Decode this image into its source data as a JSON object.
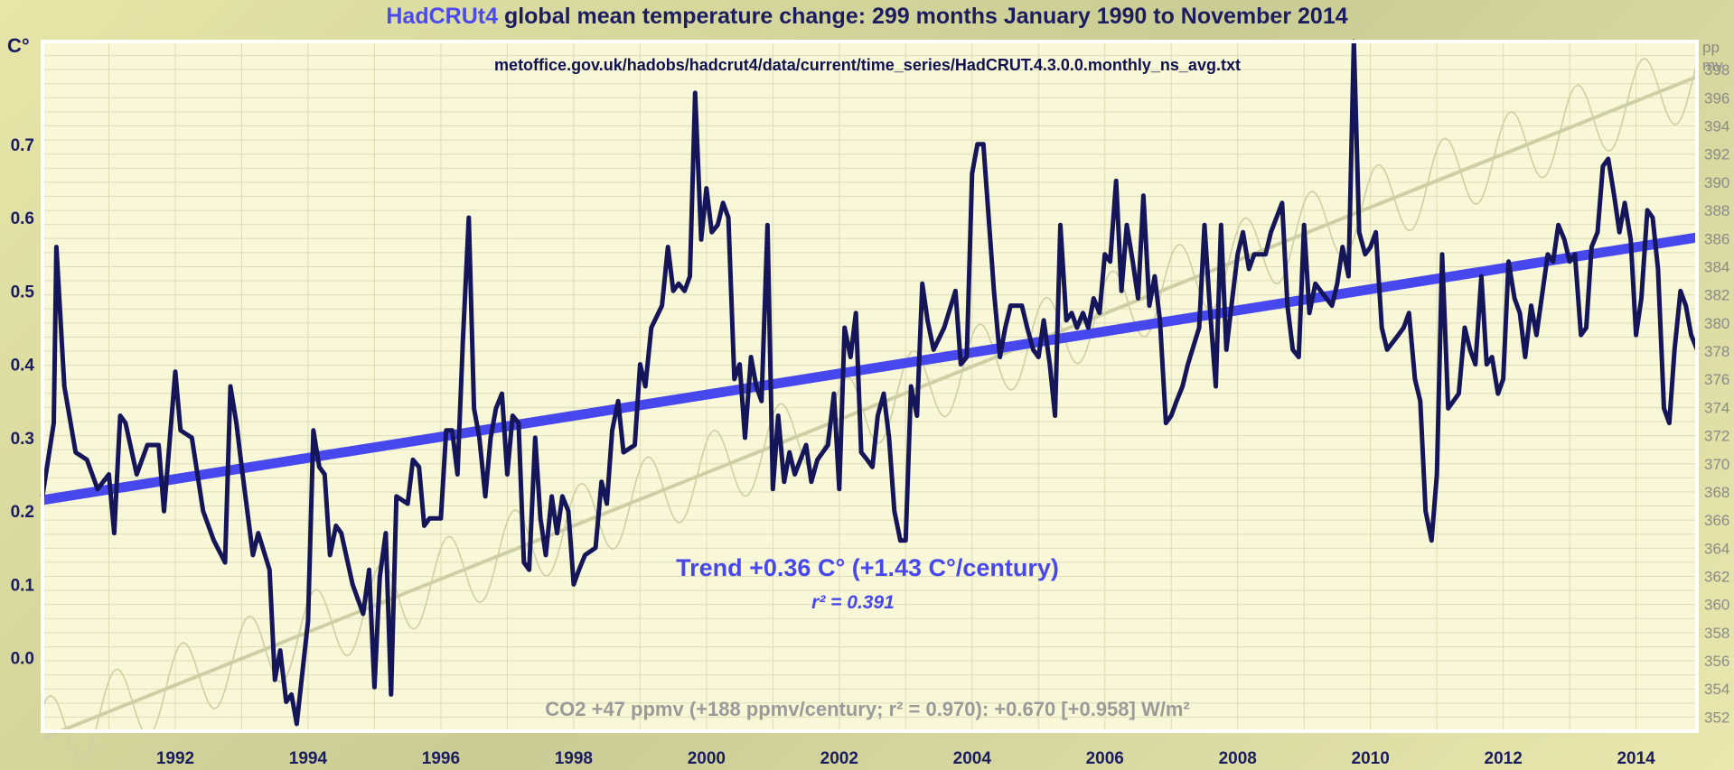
{
  "title_highlight": "HadCRUt4",
  "title_rest": " global mean temperature change: 299 months January 1990 to November 2014",
  "source_url": "metoffice.gov.uk/hadobs/hadcrut4/data/current/time_series/HadCRUT.4.3.0.0.monthly_ns_avg.txt",
  "left_unit": "C°",
  "right_unit_line1": "pp",
  "right_unit_line2": "mv",
  "trend_label": "Trend +0.36 C° (+1.43 C°/century)",
  "r2_label": "r² = 0.391",
  "co2_label": "CO2 +47 ppmv (+188 ppmv/century; r² = 0.970): +0.670 [+0.958] W/m²",
  "colors": {
    "temperature": "#15155a",
    "trend": "#4747ee",
    "co2": "#cfcfa6",
    "grid": "#dcdcb6",
    "plot_bg": "#f8f8d8"
  },
  "chart_data": {
    "type": "line",
    "x_range": [
      1990.0,
      2014.917
    ],
    "xticks": [
      "1992",
      "1994",
      "1996",
      "1998",
      "2000",
      "2002",
      "2004",
      "2006",
      "2008",
      "2010",
      "2012",
      "2014"
    ],
    "ylim": [
      -0.1,
      0.84
    ],
    "yticks": [
      "0.0",
      "0.1",
      "0.2",
      "0.3",
      "0.4",
      "0.5",
      "0.6",
      "0.7"
    ],
    "ylim_right": [
      351,
      400
    ],
    "yticks_right": [
      "352",
      "354",
      "356",
      "358",
      "360",
      "362",
      "364",
      "366",
      "368",
      "370",
      "372",
      "374",
      "376",
      "378",
      "380",
      "382",
      "384",
      "386",
      "388",
      "390",
      "392",
      "394",
      "396",
      "398"
    ],
    "grid": true,
    "series": [
      {
        "name": "HadCRUt4",
        "axis": "left",
        "points": [
          [
            1990.0,
            0.22
          ],
          [
            1990.17,
            0.32
          ],
          [
            1990.21,
            0.56
          ],
          [
            1990.33,
            0.37
          ],
          [
            1990.5,
            0.28
          ],
          [
            1990.67,
            0.27
          ],
          [
            1990.83,
            0.23
          ],
          [
            1991.0,
            0.25
          ],
          [
            1991.08,
            0.17
          ],
          [
            1991.17,
            0.33
          ],
          [
            1991.25,
            0.32
          ],
          [
            1991.42,
            0.25
          ],
          [
            1991.58,
            0.29
          ],
          [
            1991.75,
            0.29
          ],
          [
            1991.83,
            0.2
          ],
          [
            1992.0,
            0.39
          ],
          [
            1992.08,
            0.31
          ],
          [
            1992.25,
            0.3
          ],
          [
            1992.42,
            0.2
          ],
          [
            1992.58,
            0.16
          ],
          [
            1992.75,
            0.13
          ],
          [
            1992.83,
            0.37
          ],
          [
            1992.92,
            0.32
          ],
          [
            1993.0,
            0.26
          ],
          [
            1993.17,
            0.14
          ],
          [
            1993.25,
            0.17
          ],
          [
            1993.42,
            0.12
          ],
          [
            1993.5,
            -0.03
          ],
          [
            1993.58,
            0.01
          ],
          [
            1993.67,
            -0.06
          ],
          [
            1993.75,
            -0.05
          ],
          [
            1993.83,
            -0.09
          ],
          [
            1994.0,
            0.05
          ],
          [
            1994.08,
            0.31
          ],
          [
            1994.17,
            0.26
          ],
          [
            1994.25,
            0.25
          ],
          [
            1994.33,
            0.14
          ],
          [
            1994.42,
            0.18
          ],
          [
            1994.5,
            0.17
          ],
          [
            1994.67,
            0.1
          ],
          [
            1994.83,
            0.06
          ],
          [
            1994.92,
            0.12
          ],
          [
            1995.0,
            -0.04
          ],
          [
            1995.08,
            0.11
          ],
          [
            1995.17,
            0.17
          ],
          [
            1995.25,
            -0.05
          ],
          [
            1995.33,
            0.22
          ],
          [
            1995.5,
            0.21
          ],
          [
            1995.58,
            0.27
          ],
          [
            1995.67,
            0.26
          ],
          [
            1995.75,
            0.18
          ],
          [
            1995.83,
            0.19
          ],
          [
            1996.0,
            0.19
          ],
          [
            1996.08,
            0.31
          ],
          [
            1996.17,
            0.31
          ],
          [
            1996.25,
            0.25
          ],
          [
            1996.33,
            0.43
          ],
          [
            1996.42,
            0.6
          ],
          [
            1996.5,
            0.34
          ],
          [
            1996.58,
            0.3
          ],
          [
            1996.67,
            0.22
          ],
          [
            1996.75,
            0.3
          ],
          [
            1996.83,
            0.34
          ],
          [
            1996.92,
            0.36
          ],
          [
            1997.0,
            0.25
          ],
          [
            1997.08,
            0.33
          ],
          [
            1997.17,
            0.32
          ],
          [
            1997.25,
            0.13
          ],
          [
            1997.33,
            0.12
          ],
          [
            1997.42,
            0.3
          ],
          [
            1997.5,
            0.19
          ],
          [
            1997.58,
            0.14
          ],
          [
            1997.67,
            0.22
          ],
          [
            1997.75,
            0.17
          ],
          [
            1997.83,
            0.22
          ],
          [
            1997.92,
            0.2
          ],
          [
            1998.0,
            0.1
          ],
          [
            1998.08,
            0.12
          ],
          [
            1998.17,
            0.14
          ],
          [
            1998.33,
            0.15
          ],
          [
            1998.42,
            0.24
          ],
          [
            1998.5,
            0.21
          ],
          [
            1998.58,
            0.31
          ],
          [
            1998.67,
            0.35
          ],
          [
            1998.75,
            0.28
          ],
          [
            1998.92,
            0.29
          ],
          [
            1999.0,
            0.4
          ],
          [
            1999.08,
            0.37
          ],
          [
            1999.17,
            0.45
          ],
          [
            1999.33,
            0.48
          ],
          [
            1999.42,
            0.56
          ],
          [
            1999.5,
            0.5
          ],
          [
            1999.58,
            0.51
          ],
          [
            1999.67,
            0.5
          ],
          [
            1999.75,
            0.52
          ],
          [
            1999.83,
            0.77
          ],
          [
            1999.92,
            0.57
          ],
          [
            2000.0,
            0.64
          ],
          [
            2000.08,
            0.58
          ],
          [
            2000.17,
            0.59
          ],
          [
            2000.25,
            0.62
          ],
          [
            2000.33,
            0.6
          ],
          [
            2000.42,
            0.38
          ],
          [
            2000.5,
            0.4
          ],
          [
            2000.58,
            0.3
          ],
          [
            2000.67,
            0.41
          ],
          [
            2000.75,
            0.37
          ],
          [
            2000.83,
            0.35
          ],
          [
            2000.92,
            0.59
          ],
          [
            2001.0,
            0.23
          ],
          [
            2001.08,
            0.33
          ],
          [
            2001.17,
            0.24
          ],
          [
            2001.25,
            0.28
          ],
          [
            2001.33,
            0.25
          ],
          [
            2001.5,
            0.29
          ],
          [
            2001.58,
            0.24
          ],
          [
            2001.67,
            0.27
          ],
          [
            2001.83,
            0.29
          ],
          [
            2001.92,
            0.36
          ],
          [
            2002.0,
            0.23
          ],
          [
            2002.08,
            0.45
          ],
          [
            2002.17,
            0.41
          ],
          [
            2002.25,
            0.47
          ],
          [
            2002.33,
            0.28
          ],
          [
            2002.42,
            0.27
          ],
          [
            2002.5,
            0.26
          ],
          [
            2002.58,
            0.33
          ],
          [
            2002.67,
            0.36
          ],
          [
            2002.75,
            0.3
          ],
          [
            2002.83,
            0.2
          ],
          [
            2002.92,
            0.16
          ],
          [
            2003.0,
            0.16
          ],
          [
            2003.08,
            0.37
          ],
          [
            2003.17,
            0.33
          ],
          [
            2003.25,
            0.51
          ],
          [
            2003.33,
            0.46
          ],
          [
            2003.42,
            0.42
          ],
          [
            2003.58,
            0.45
          ],
          [
            2003.75,
            0.5
          ],
          [
            2003.83,
            0.4
          ],
          [
            2003.92,
            0.41
          ],
          [
            2004.0,
            0.66
          ],
          [
            2004.08,
            0.7
          ],
          [
            2004.17,
            0.7
          ],
          [
            2004.33,
            0.5
          ],
          [
            2004.42,
            0.41
          ],
          [
            2004.5,
            0.45
          ],
          [
            2004.58,
            0.48
          ],
          [
            2004.75,
            0.48
          ],
          [
            2004.83,
            0.45
          ],
          [
            2004.92,
            0.42
          ],
          [
            2005.0,
            0.41
          ],
          [
            2005.08,
            0.46
          ],
          [
            2005.17,
            0.4
          ],
          [
            2005.25,
            0.33
          ],
          [
            2005.33,
            0.59
          ],
          [
            2005.42,
            0.46
          ],
          [
            2005.5,
            0.47
          ],
          [
            2005.58,
            0.45
          ],
          [
            2005.67,
            0.47
          ],
          [
            2005.75,
            0.45
          ],
          [
            2005.83,
            0.49
          ],
          [
            2005.92,
            0.47
          ],
          [
            2006.0,
            0.55
          ],
          [
            2006.08,
            0.54
          ],
          [
            2006.17,
            0.65
          ],
          [
            2006.25,
            0.5
          ],
          [
            2006.33,
            0.59
          ],
          [
            2006.42,
            0.54
          ],
          [
            2006.5,
            0.49
          ],
          [
            2006.58,
            0.63
          ],
          [
            2006.67,
            0.48
          ],
          [
            2006.75,
            0.52
          ],
          [
            2006.83,
            0.46
          ],
          [
            2006.92,
            0.32
          ],
          [
            2007.0,
            0.33
          ],
          [
            2007.08,
            0.35
          ],
          [
            2007.17,
            0.37
          ],
          [
            2007.25,
            0.4
          ],
          [
            2007.42,
            0.45
          ],
          [
            2007.5,
            0.59
          ],
          [
            2007.58,
            0.48
          ],
          [
            2007.67,
            0.37
          ],
          [
            2007.75,
            0.59
          ],
          [
            2007.83,
            0.42
          ],
          [
            2007.92,
            0.49
          ],
          [
            2008.0,
            0.55
          ],
          [
            2008.08,
            0.58
          ],
          [
            2008.17,
            0.53
          ],
          [
            2008.25,
            0.55
          ],
          [
            2008.42,
            0.55
          ],
          [
            2008.5,
            0.58
          ],
          [
            2008.67,
            0.62
          ],
          [
            2008.75,
            0.48
          ],
          [
            2008.83,
            0.42
          ],
          [
            2008.92,
            0.41
          ],
          [
            2009.0,
            0.59
          ],
          [
            2009.08,
            0.47
          ],
          [
            2009.17,
            0.51
          ],
          [
            2009.25,
            0.5
          ],
          [
            2009.42,
            0.48
          ],
          [
            2009.5,
            0.51
          ],
          [
            2009.58,
            0.56
          ],
          [
            2009.67,
            0.52
          ],
          [
            2009.75,
            0.84
          ],
          [
            2009.83,
            0.58
          ],
          [
            2009.92,
            0.55
          ],
          [
            2010.0,
            0.56
          ],
          [
            2010.08,
            0.58
          ],
          [
            2010.17,
            0.45
          ],
          [
            2010.25,
            0.42
          ],
          [
            2010.42,
            0.44
          ],
          [
            2010.5,
            0.45
          ],
          [
            2010.58,
            0.47
          ],
          [
            2010.67,
            0.38
          ],
          [
            2010.75,
            0.35
          ],
          [
            2010.83,
            0.2
          ],
          [
            2010.92,
            0.16
          ],
          [
            2011.0,
            0.25
          ],
          [
            2011.08,
            0.55
          ],
          [
            2011.17,
            0.34
          ],
          [
            2011.25,
            0.35
          ],
          [
            2011.33,
            0.36
          ],
          [
            2011.42,
            0.45
          ],
          [
            2011.5,
            0.42
          ],
          [
            2011.58,
            0.4
          ],
          [
            2011.67,
            0.52
          ],
          [
            2011.75,
            0.4
          ],
          [
            2011.83,
            0.41
          ],
          [
            2011.92,
            0.36
          ],
          [
            2012.0,
            0.38
          ],
          [
            2012.08,
            0.54
          ],
          [
            2012.17,
            0.49
          ],
          [
            2012.25,
            0.47
          ],
          [
            2012.33,
            0.41
          ],
          [
            2012.42,
            0.48
          ],
          [
            2012.5,
            0.44
          ],
          [
            2012.67,
            0.55
          ],
          [
            2012.75,
            0.54
          ],
          [
            2012.83,
            0.59
          ],
          [
            2012.92,
            0.57
          ],
          [
            2013.0,
            0.54
          ],
          [
            2013.08,
            0.55
          ],
          [
            2013.17,
            0.44
          ],
          [
            2013.25,
            0.45
          ],
          [
            2013.33,
            0.56
          ],
          [
            2013.42,
            0.58
          ],
          [
            2013.5,
            0.67
          ],
          [
            2013.58,
            0.68
          ],
          [
            2013.67,
            0.63
          ],
          [
            2013.75,
            0.58
          ],
          [
            2013.83,
            0.62
          ],
          [
            2013.92,
            0.57
          ],
          [
            2014.0,
            0.44
          ],
          [
            2014.08,
            0.49
          ],
          [
            2014.17,
            0.61
          ],
          [
            2014.25,
            0.6
          ],
          [
            2014.33,
            0.53
          ],
          [
            2014.42,
            0.34
          ],
          [
            2014.5,
            0.32
          ],
          [
            2014.58,
            0.42
          ],
          [
            2014.67,
            0.5
          ],
          [
            2014.75,
            0.48
          ],
          [
            2014.83,
            0.44
          ],
          [
            2014.92,
            0.42
          ]
        ]
      },
      {
        "name": "Trend",
        "axis": "left",
        "points": [
          [
            1990.0,
            0.215
          ],
          [
            2014.917,
            0.573
          ]
        ]
      },
      {
        "name": "CO2",
        "axis": "right",
        "trend_points": [
          [
            1990.0,
            350.5
          ],
          [
            2014.917,
            397.5
          ]
        ],
        "seasonal_amplitude": 2.8
      }
    ]
  }
}
